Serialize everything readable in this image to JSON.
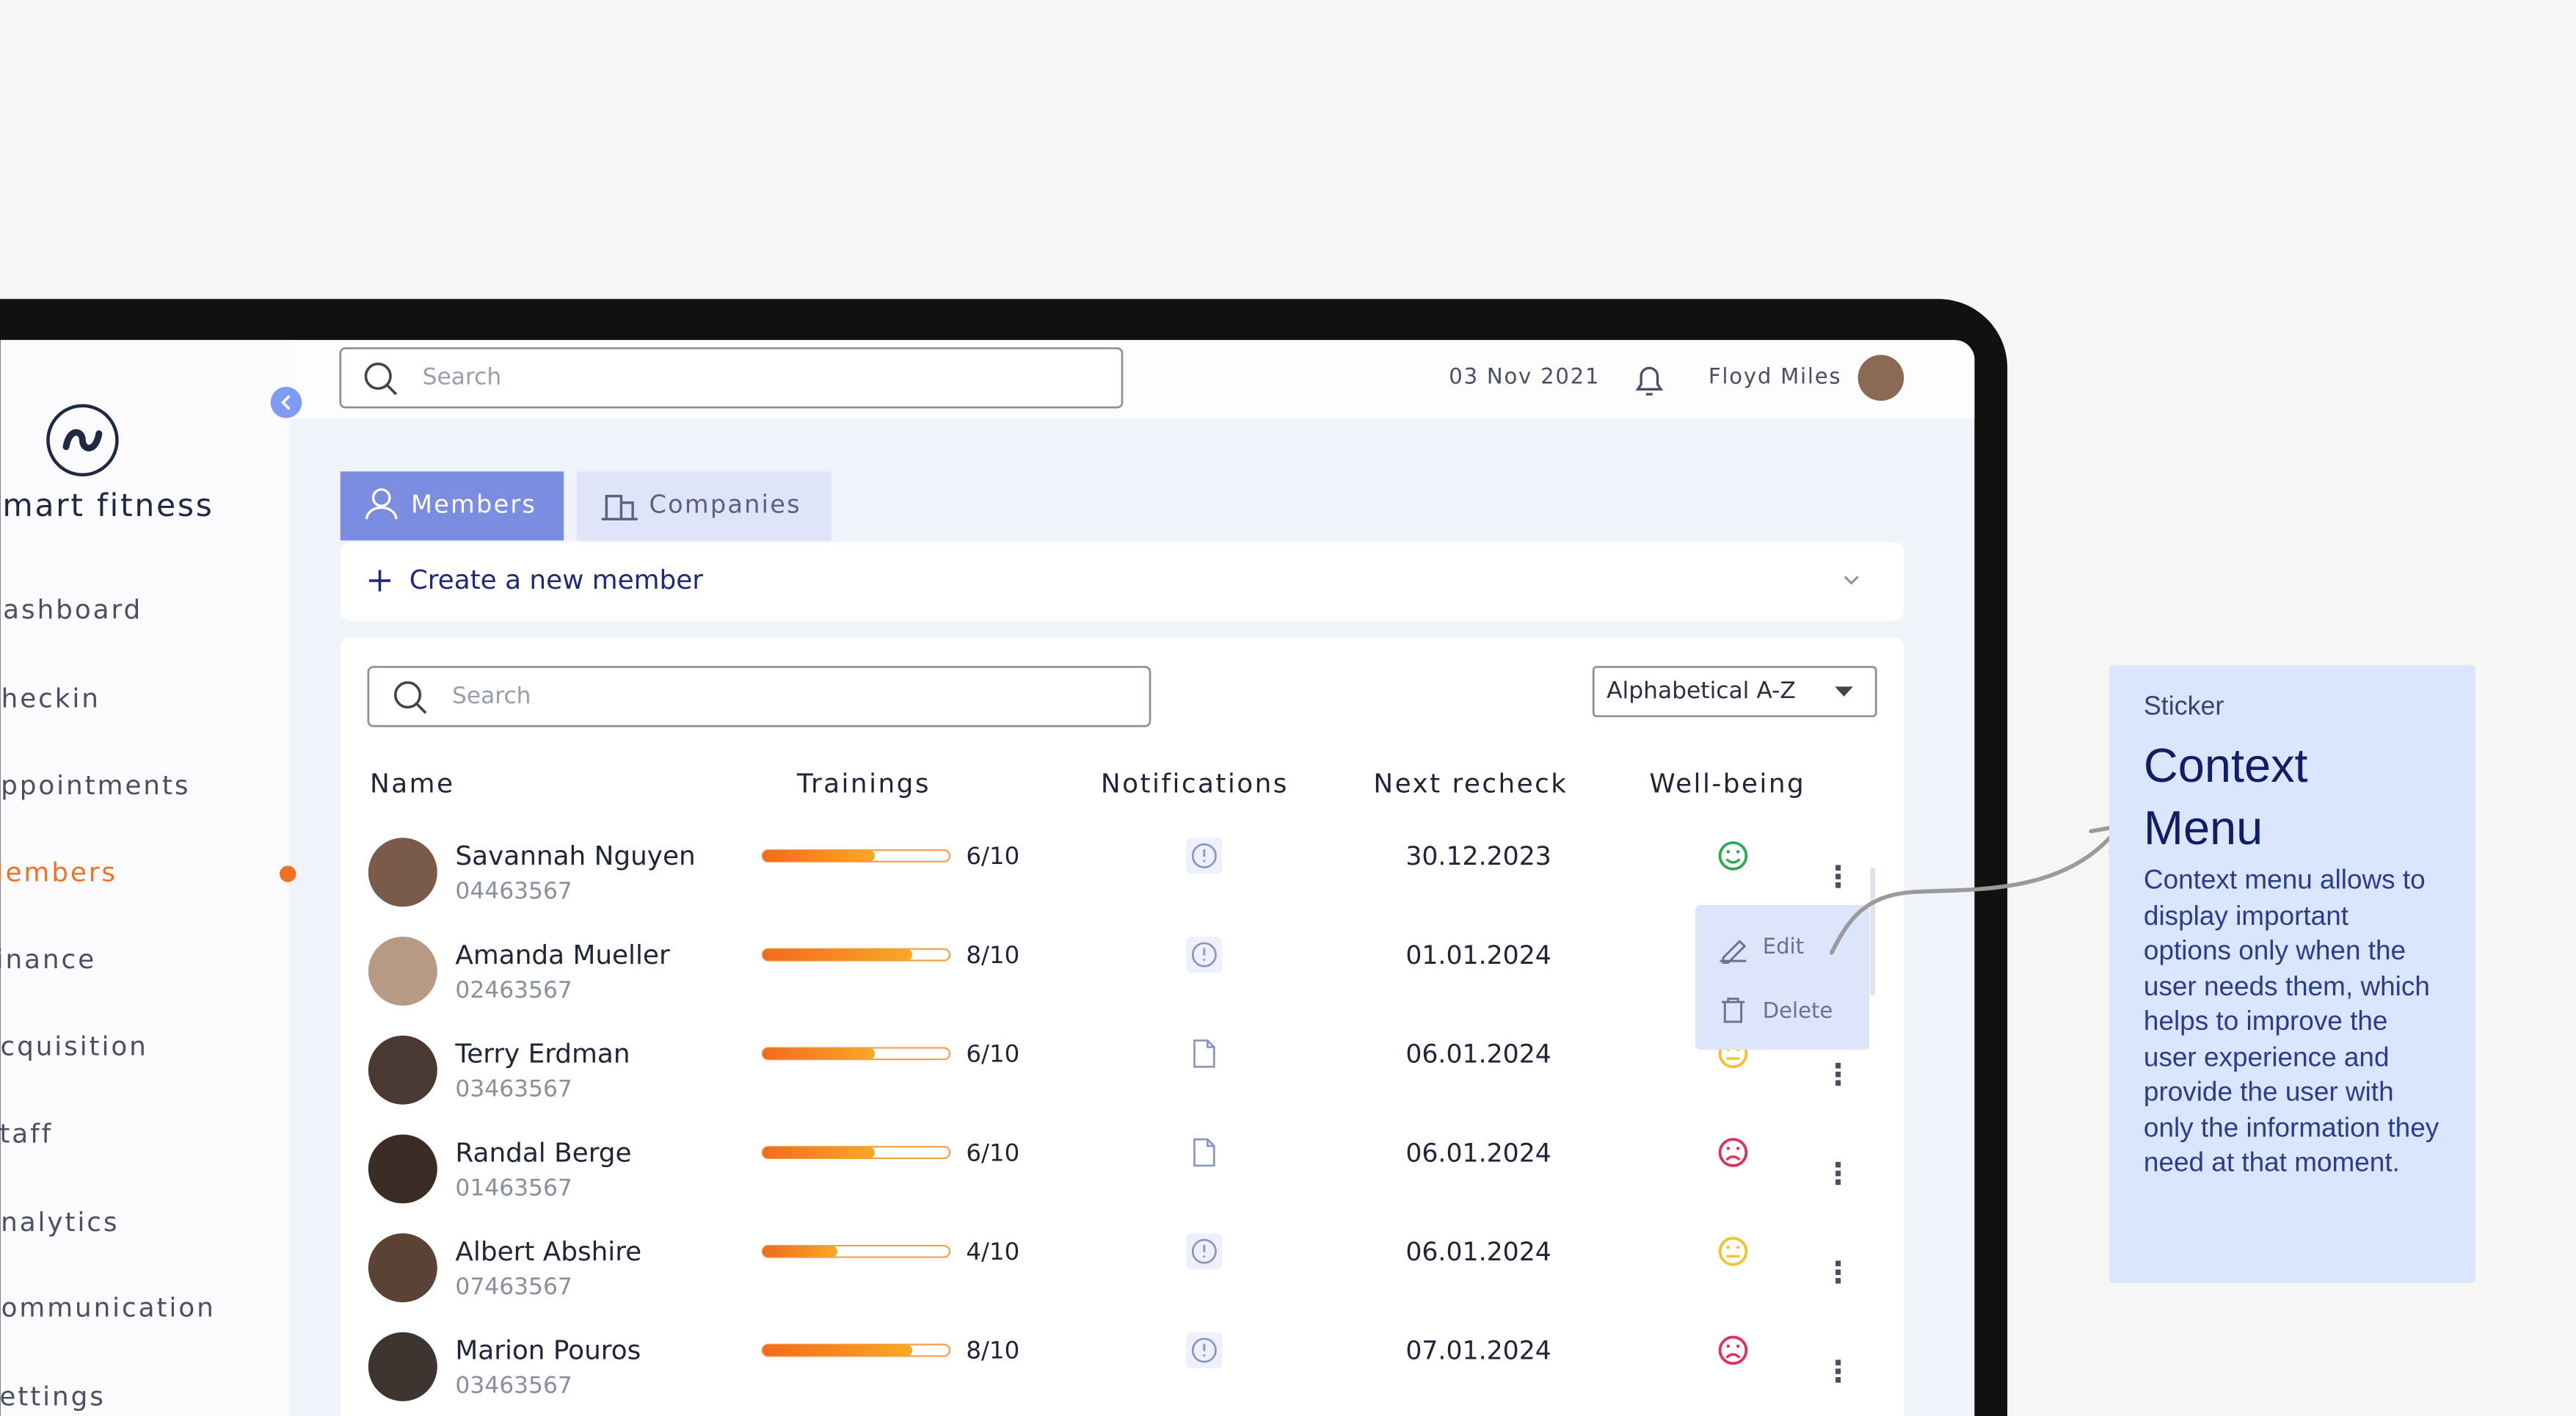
{
  "sidebar": {
    "brand": "Smart fitness",
    "nav": [
      "Dashboard",
      "Checkin",
      "Appointments",
      "Members",
      "Finance",
      "Acquisition",
      "Staff",
      "Analytics",
      "Communication",
      "Settings"
    ],
    "active": 3
  },
  "header": {
    "search_placeholder": "Search",
    "date": "03 Nov 2021",
    "user": "Floyd Miles"
  },
  "tabs": [
    "Members",
    "Companies"
  ],
  "create_button": "Create a new member",
  "table": {
    "search_placeholder": "Search",
    "sort": "Alphabetical A-Z",
    "columns": [
      "Name",
      "Trainings",
      "Notifications",
      "Next recheck",
      "Well-being"
    ],
    "rows": [
      {
        "name": "Savannah Nguyen",
        "id": "04463567",
        "trainings": "6/10",
        "notification": "info",
        "recheck": "30.12.2023",
        "wellbeing": "happy"
      },
      {
        "name": "Amanda Mueller",
        "id": "02463567",
        "trainings": "8/10",
        "notification": "info",
        "recheck": "01.01.2024",
        "wellbeing": null
      },
      {
        "name": "Terry Erdman",
        "id": "03463567",
        "trainings": "6/10",
        "notification": "document",
        "recheck": "06.01.2024",
        "wellbeing": "neutral"
      },
      {
        "name": "Randal Berge",
        "id": "01463567",
        "trainings": "6/10",
        "notification": "document",
        "recheck": "06.01.2024",
        "wellbeing": "sad"
      },
      {
        "name": "Albert Abshire",
        "id": "07463567",
        "trainings": "4/10",
        "notification": "info",
        "recheck": "06.01.2024",
        "wellbeing": "neutral"
      },
      {
        "name": "Marion Pouros",
        "id": "03463567",
        "trainings": "8/10",
        "notification": "info",
        "recheck": "07.01.2024",
        "wellbeing": "sad"
      }
    ]
  },
  "context_menu": {
    "items": [
      "Edit",
      "Delete"
    ]
  },
  "sticker": {
    "label": "Sticker",
    "title": "Context Menu",
    "body": "Context menu allows to display important options only when the user needs them, which helps to improve the user experience and provide the user with only the information they need at that moment."
  }
}
